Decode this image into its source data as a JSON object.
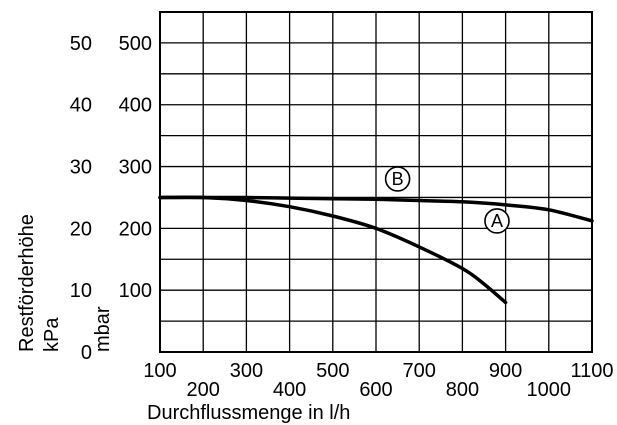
{
  "chart_data": {
    "type": "line",
    "xlabel": "Durchflussmenge in l/h",
    "ylabel": "Restförderhöhe",
    "ylabel_units": [
      "kPa",
      "mbar"
    ],
    "x_ticks_top": [
      "100",
      "300",
      "500",
      "700",
      "900",
      "1100"
    ],
    "x_ticks_bottom": [
      "200",
      "400",
      "600",
      "800",
      "1000"
    ],
    "y_ticks_kpa": [
      "0",
      "10",
      "20",
      "30",
      "40",
      "50"
    ],
    "y_ticks_mbar": [
      "100",
      "200",
      "300",
      "400",
      "500"
    ],
    "xlim": [
      100,
      1100
    ],
    "ylim": [
      0,
      550
    ],
    "grid": true,
    "series": [
      {
        "name": "A",
        "x": [
          100,
          200,
          300,
          400,
          500,
          600,
          700,
          800,
          850,
          900
        ],
        "y": [
          250,
          250,
          245,
          235,
          220,
          200,
          170,
          135,
          110,
          80
        ]
      },
      {
        "name": "B",
        "x": [
          100,
          200,
          300,
          400,
          500,
          600,
          700,
          800,
          900,
          1000,
          1100
        ],
        "y": [
          250,
          250,
          250,
          249,
          248,
          247,
          245,
          243,
          238,
          230,
          212
        ]
      }
    ]
  }
}
